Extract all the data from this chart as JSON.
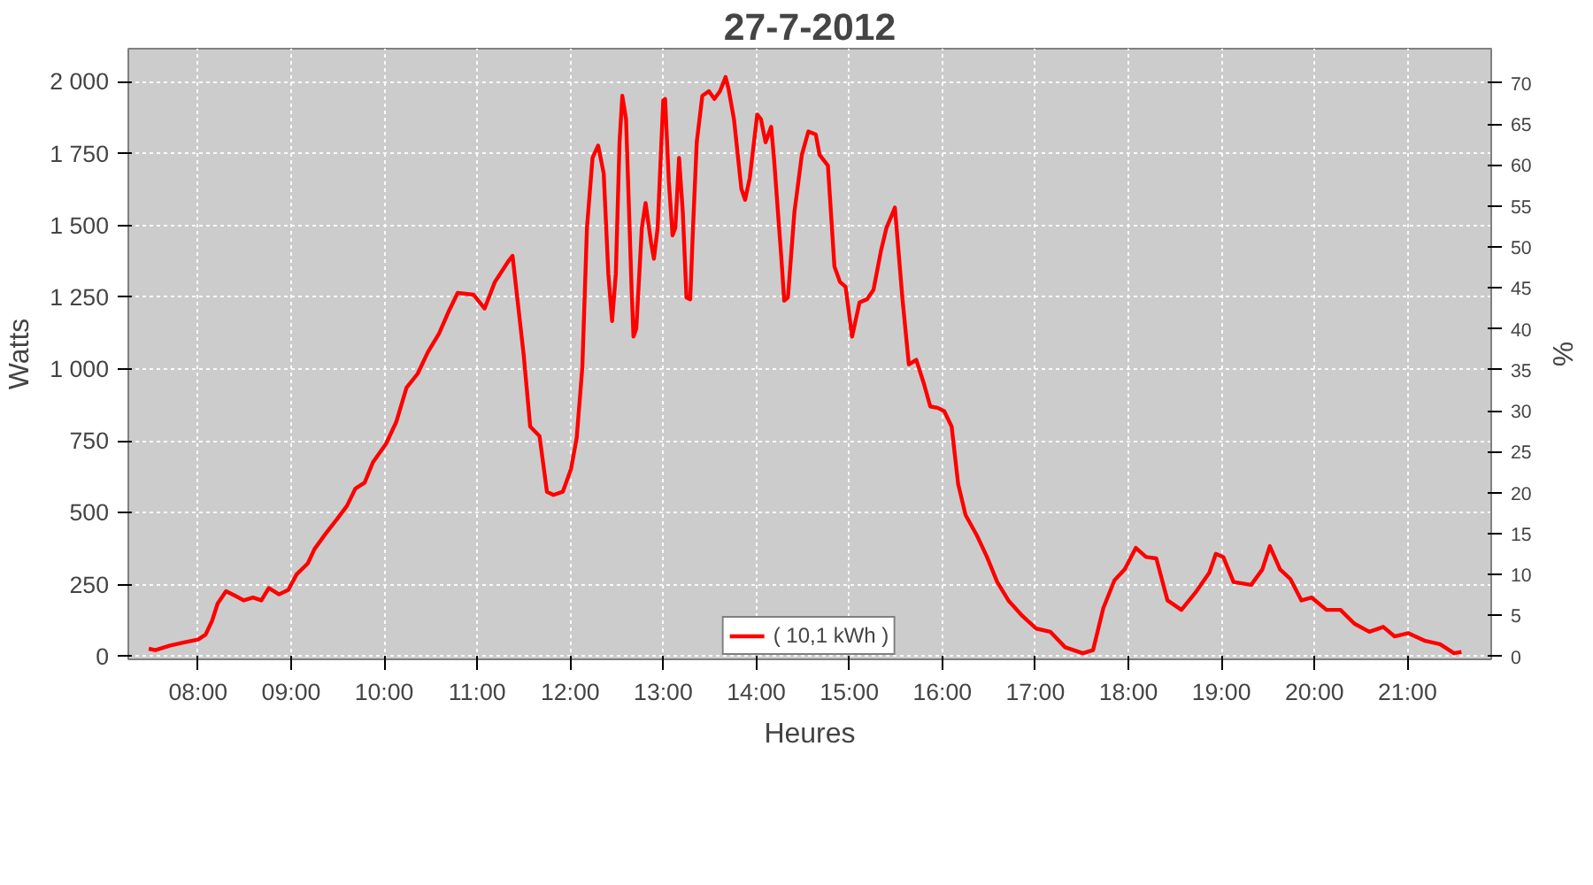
{
  "chart_data": {
    "type": "line",
    "title": "27-7-2012",
    "xlabel": "Heures",
    "ylabel": "Watts",
    "y2label": "%",
    "xlim": [
      7.25,
      21.9
    ],
    "xticks": [
      {
        "value": 8,
        "label": "08:00"
      },
      {
        "value": 9,
        "label": "09:00"
      },
      {
        "value": 10,
        "label": "10:00"
      },
      {
        "value": 11,
        "label": "11:00"
      },
      {
        "value": 12,
        "label": "12:00"
      },
      {
        "value": 13,
        "label": "13:00"
      },
      {
        "value": 14,
        "label": "14:00"
      },
      {
        "value": 15,
        "label": "15:00"
      },
      {
        "value": 16,
        "label": "16:00"
      },
      {
        "value": 17,
        "label": "17:00"
      },
      {
        "value": 18,
        "label": "18:00"
      },
      {
        "value": 19,
        "label": "19:00"
      },
      {
        "value": 20,
        "label": "20:00"
      },
      {
        "value": 21,
        "label": "21:00"
      }
    ],
    "ylim": [
      -10,
      2115
    ],
    "yticks": [
      0,
      250,
      500,
      750,
      {
        "value": 1000,
        "label": "1 000"
      },
      {
        "value": 1250,
        "label": "1 250"
      },
      {
        "value": 1500,
        "label": "1 500"
      },
      {
        "value": 1750,
        "label": "1 750"
      },
      {
        "value": 2000,
        "label": "2 000"
      }
    ],
    "y2lim": [
      -0.35,
      74.2
    ],
    "y2ticks": [
      0,
      5,
      10,
      15,
      20,
      25,
      30,
      35,
      40,
      45,
      50,
      55,
      60,
      65,
      70
    ],
    "grid": true,
    "legend": "bottom",
    "marker": "none",
    "line_style": "solid",
    "series": [
      {
        "name": "( 10,1 kWh )",
        "color": "#ff0000",
        "x": [
          7.47,
          7.54,
          7.7,
          7.85,
          8.0,
          8.08,
          8.15,
          8.21,
          8.3,
          8.4,
          8.49,
          8.59,
          8.68,
          8.76,
          8.87,
          8.97,
          9.06,
          9.18,
          9.25,
          9.37,
          9.5,
          9.6,
          9.69,
          9.79,
          9.88,
          10.02,
          10.13,
          10.24,
          10.36,
          10.47,
          10.59,
          10.7,
          10.79,
          10.96,
          11.08,
          11.19,
          11.33,
          11.38,
          11.5,
          11.57,
          11.67,
          11.75,
          11.82,
          11.92,
          12.01,
          12.07,
          12.13,
          12.18,
          12.24,
          12.3,
          12.36,
          12.41,
          12.45,
          12.49,
          12.53,
          12.56,
          12.6,
          12.66,
          12.68,
          12.71,
          12.77,
          12.81,
          12.87,
          12.9,
          12.94,
          13.0,
          13.02,
          13.06,
          13.1,
          13.13,
          13.17,
          13.21,
          13.25,
          13.29,
          13.32,
          13.36,
          13.42,
          13.49,
          13.55,
          13.61,
          13.67,
          13.7,
          13.76,
          13.84,
          13.88,
          13.93,
          14.01,
          14.05,
          14.1,
          14.16,
          14.19,
          14.27,
          14.3,
          14.34,
          14.41,
          14.49,
          14.56,
          14.64,
          14.68,
          14.77,
          14.84,
          14.9,
          14.96,
          15.03,
          15.11,
          15.19,
          15.26,
          15.34,
          15.4,
          15.49,
          15.57,
          15.64,
          15.72,
          15.8,
          15.87,
          15.95,
          16.02,
          16.1,
          16.17,
          16.25,
          16.37,
          16.48,
          16.59,
          16.71,
          16.86,
          17.01,
          17.16,
          17.32,
          17.51,
          17.62,
          17.73,
          17.85,
          17.96,
          18.08,
          18.19,
          18.3,
          18.42,
          18.57,
          18.72,
          18.87,
          18.94,
          19.02,
          19.13,
          19.32,
          19.44,
          19.52,
          19.63,
          19.74,
          19.86,
          19.97,
          20.13,
          20.28,
          20.43,
          20.59,
          20.74,
          20.86,
          21.01,
          21.19,
          21.35,
          21.5,
          21.58
        ],
        "values": [
          27,
          22,
          38,
          49,
          59,
          76,
          124,
          184,
          227,
          211,
          195,
          205,
          195,
          238,
          216,
          232,
          286,
          324,
          373,
          427,
          481,
          524,
          584,
          605,
          676,
          740,
          816,
          935,
          984,
          1059,
          1124,
          1205,
          1265,
          1259,
          1211,
          1303,
          1373,
          1394,
          1049,
          800,
          767,
          573,
          562,
          573,
          654,
          762,
          1005,
          1492,
          1735,
          1778,
          1681,
          1330,
          1167,
          1330,
          1789,
          1951,
          1870,
          1276,
          1113,
          1140,
          1492,
          1578,
          1438,
          1384,
          1492,
          1935,
          1940,
          1654,
          1465,
          1492,
          1735,
          1546,
          1249,
          1243,
          1492,
          1789,
          1951,
          1967,
          1940,
          1967,
          2016,
          1978,
          1870,
          1627,
          1589,
          1665,
          1886,
          1870,
          1789,
          1843,
          1735,
          1384,
          1238,
          1249,
          1546,
          1746,
          1827,
          1816,
          1746,
          1708,
          1357,
          1303,
          1286,
          1113,
          1232,
          1243,
          1276,
          1411,
          1492,
          1562,
          1249,
          1016,
          1032,
          951,
          870,
          865,
          854,
          800,
          600,
          492,
          422,
          346,
          259,
          195,
          141,
          97,
          86,
          32,
          11,
          22,
          168,
          265,
          303,
          378,
          346,
          341,
          195,
          162,
          222,
          292,
          357,
          346,
          259,
          249,
          303,
          384,
          303,
          270,
          195,
          205,
          162,
          162,
          114,
          86,
          103,
          70,
          81,
          54,
          43,
          11,
          16
        ]
      }
    ]
  }
}
